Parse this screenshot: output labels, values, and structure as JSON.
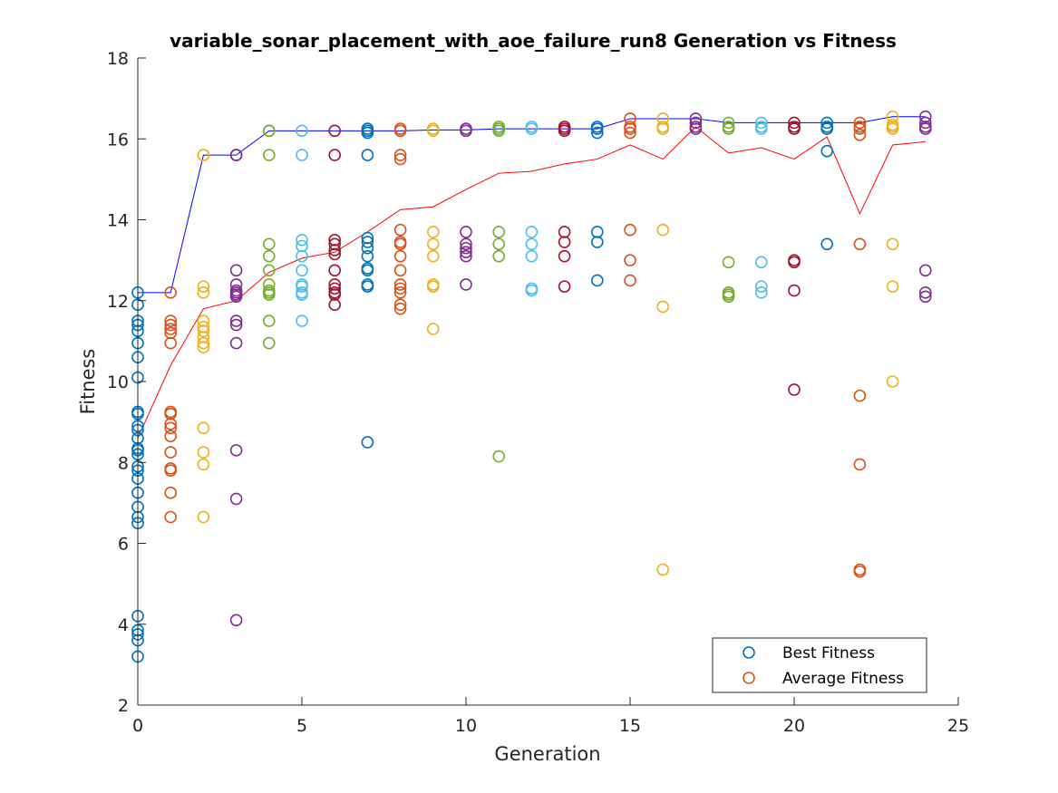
{
  "chart_data": {
    "type": "scatter",
    "title": "variable_sonar_placement_with_aoe_failure_run8 Generation vs Fitness",
    "xlabel": "Generation",
    "ylabel": "Fitness",
    "xlim": [
      0,
      25
    ],
    "ylim": [
      2,
      18
    ],
    "xticks": [
      "0",
      "5",
      "10",
      "15",
      "20",
      "25"
    ],
    "yticks": [
      "2",
      "4",
      "6",
      "8",
      "10",
      "12",
      "14",
      "16",
      "18"
    ],
    "grid": false,
    "legend_position": "bottom-right",
    "legend": [
      {
        "label": "Best Fitness",
        "color": "#0072BD"
      },
      {
        "label": "Average Fitness",
        "color": "#D95319"
      }
    ],
    "generation_colors": [
      "#0072BD",
      "#D95319",
      "#EDB120",
      "#7E2F8E",
      "#77AC30",
      "#4DBEEE",
      "#A2142F"
    ],
    "best_fitness_line": {
      "color": "#0000FF",
      "x": [
        0,
        1,
        2,
        3,
        4,
        5,
        6,
        7,
        8,
        9,
        10,
        11,
        12,
        13,
        14,
        15,
        16,
        17,
        18,
        19,
        20,
        21,
        22,
        23,
        24
      ],
      "y": [
        12.2,
        12.2,
        15.6,
        15.6,
        16.2,
        16.2,
        16.2,
        16.2,
        16.2,
        16.22,
        16.22,
        16.25,
        16.25,
        16.25,
        16.25,
        16.5,
        16.5,
        16.5,
        16.4,
        16.4,
        16.4,
        16.4,
        16.4,
        16.55,
        16.55
      ]
    },
    "average_fitness_line": {
      "color": "#FF0000",
      "x": [
        0,
        1,
        2,
        3,
        4,
        5,
        6,
        7,
        8,
        9,
        10,
        11,
        12,
        13,
        14,
        15,
        16,
        17,
        18,
        19,
        20,
        21,
        22,
        23,
        24
      ],
      "y": [
        8.6,
        10.4,
        11.8,
        12.0,
        12.7,
        13.05,
        13.2,
        13.7,
        14.25,
        14.32,
        14.75,
        15.15,
        15.2,
        15.38,
        15.5,
        15.85,
        15.5,
        16.3,
        15.65,
        15.78,
        15.5,
        16.05,
        14.15,
        15.85,
        15.93
      ]
    },
    "points": [
      {
        "x": 0,
        "y": [
          12.2,
          11.9,
          11.5,
          11.4,
          11.25,
          10.95,
          10.6,
          10.1,
          9.25,
          9.2,
          8.9,
          8.8,
          8.6,
          8.35,
          8.3,
          8.2,
          7.9,
          7.8,
          7.6,
          7.25,
          6.9,
          6.65,
          6.5,
          4.2,
          3.85,
          3.75,
          3.6,
          3.2
        ]
      },
      {
        "x": 1,
        "y": [
          12.2,
          11.5,
          11.4,
          11.3,
          11.2,
          10.95,
          9.25,
          9.2,
          8.95,
          8.85,
          8.65,
          8.25,
          7.85,
          7.8,
          7.25,
          6.65
        ]
      },
      {
        "x": 2,
        "y": [
          15.6,
          15.6,
          12.35,
          12.2,
          11.5,
          11.35,
          11.25,
          11.1,
          10.95,
          10.85,
          8.85,
          8.25,
          7.95,
          6.65
        ]
      },
      {
        "x": 3,
        "y": [
          15.6,
          15.6,
          12.75,
          12.4,
          12.25,
          12.2,
          12.15,
          12.1,
          11.5,
          11.4,
          10.95,
          8.3,
          7.1,
          4.1
        ]
      },
      {
        "x": 4,
        "y": [
          16.2,
          16.2,
          15.6,
          13.4,
          13.1,
          12.75,
          12.4,
          12.25,
          12.2,
          12.15,
          11.5,
          10.95
        ]
      },
      {
        "x": 5,
        "y": [
          16.2,
          15.6,
          13.5,
          13.35,
          13.1,
          12.75,
          12.4,
          12.35,
          12.2,
          12.15,
          11.5
        ]
      },
      {
        "x": 6,
        "y": [
          16.2,
          15.6,
          13.5,
          13.4,
          13.25,
          13.15,
          12.75,
          12.4,
          12.3,
          12.2,
          12.15,
          11.9
        ]
      },
      {
        "x": 7,
        "y": [
          16.25,
          16.2,
          16.15,
          15.6,
          13.55,
          13.45,
          13.3,
          13.1,
          12.8,
          12.75,
          12.4,
          12.35,
          8.5
        ]
      },
      {
        "x": 8,
        "y": [
          16.25,
          16.2,
          15.6,
          15.5,
          13.75,
          13.45,
          13.4,
          13.1,
          12.75,
          12.4,
          12.3,
          12.2,
          11.9,
          11.8
        ]
      },
      {
        "x": 9,
        "y": [
          16.25,
          16.2,
          13.7,
          13.4,
          13.1,
          12.4,
          12.35,
          11.3
        ]
      },
      {
        "x": 10,
        "y": [
          16.25,
          16.2,
          13.7,
          13.4,
          13.3,
          13.2,
          13.1,
          12.4
        ]
      },
      {
        "x": 11,
        "y": [
          16.3,
          16.25,
          16.2,
          13.7,
          13.4,
          13.1,
          8.15
        ]
      },
      {
        "x": 12,
        "y": [
          16.3,
          16.25,
          13.7,
          13.4,
          13.1,
          12.3,
          12.25
        ]
      },
      {
        "x": 13,
        "y": [
          16.3,
          16.25,
          16.2,
          13.7,
          13.45,
          13.1,
          12.35
        ]
      },
      {
        "x": 14,
        "y": [
          16.3,
          16.25,
          16.15,
          13.7,
          13.45,
          12.5
        ]
      },
      {
        "x": 15,
        "y": [
          16.5,
          16.3,
          16.25,
          16.15,
          13.75,
          13.0,
          12.5
        ]
      },
      {
        "x": 16,
        "y": [
          16.5,
          16.3,
          16.25,
          13.75,
          11.85,
          5.35
        ]
      },
      {
        "x": 17,
        "y": [
          16.5,
          16.4,
          16.3,
          16.25
        ]
      },
      {
        "x": 18,
        "y": [
          16.4,
          16.3,
          16.25,
          12.95,
          12.2,
          12.15,
          12.1
        ]
      },
      {
        "x": 19,
        "y": [
          16.4,
          16.3,
          16.25,
          12.95,
          12.35,
          12.2
        ]
      },
      {
        "x": 20,
        "y": [
          16.4,
          16.3,
          16.25,
          13.0,
          12.95,
          12.25,
          9.8
        ]
      },
      {
        "x": 21,
        "y": [
          16.4,
          16.3,
          16.25,
          15.7,
          13.4
        ]
      },
      {
        "x": 22,
        "y": [
          16.4,
          16.3,
          16.25,
          16.1,
          13.4,
          9.65,
          7.95,
          5.35,
          5.3
        ]
      },
      {
        "x": 23,
        "y": [
          16.55,
          16.35,
          16.3,
          16.25,
          13.4,
          12.35,
          10.0
        ]
      },
      {
        "x": 24,
        "y": [
          16.55,
          16.4,
          16.3,
          16.25,
          12.75,
          12.2,
          12.1
        ]
      }
    ]
  }
}
